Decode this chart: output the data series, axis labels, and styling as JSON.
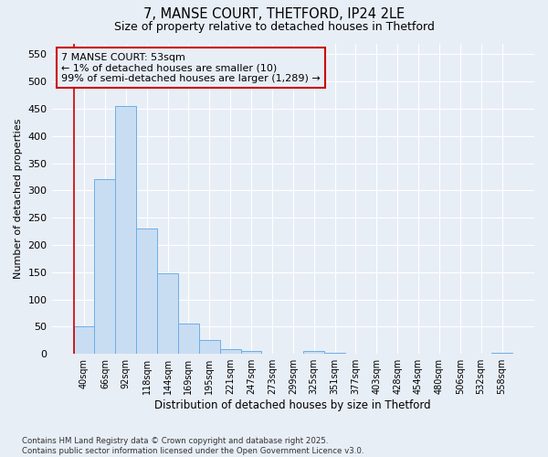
{
  "title_line1": "7, MANSE COURT, THETFORD, IP24 2LE",
  "title_line2": "Size of property relative to detached houses in Thetford",
  "xlabel": "Distribution of detached houses by size in Thetford",
  "ylabel": "Number of detached properties",
  "categories": [
    "40sqm",
    "66sqm",
    "92sqm",
    "118sqm",
    "144sqm",
    "169sqm",
    "195sqm",
    "221sqm",
    "247sqm",
    "273sqm",
    "299sqm",
    "325sqm",
    "351sqm",
    "377sqm",
    "403sqm",
    "428sqm",
    "454sqm",
    "480sqm",
    "506sqm",
    "532sqm",
    "558sqm"
  ],
  "values": [
    50,
    320,
    455,
    230,
    148,
    55,
    25,
    9,
    5,
    0,
    0,
    5,
    2,
    0,
    0,
    0,
    0,
    0,
    0,
    0,
    2
  ],
  "bar_color": "#c9ddf2",
  "bar_edge_color": "#6aaee8",
  "annotation_box_color": "#cc0000",
  "annotation_text": "7 MANSE COURT: 53sqm\n← 1% of detached houses are smaller (10)\n99% of semi-detached houses are larger (1,289) →",
  "highlight_bar_color": "#cc0000",
  "ylim": [
    0,
    570
  ],
  "yticks": [
    0,
    50,
    100,
    150,
    200,
    250,
    300,
    350,
    400,
    450,
    500,
    550
  ],
  "footnote": "Contains HM Land Registry data © Crown copyright and database right 2025.\nContains public sector information licensed under the Open Government Licence v3.0.",
  "bg_color": "#e8eef6",
  "grid_color": "#ffffff",
  "figsize": [
    6.0,
    5.0
  ],
  "dpi": 100
}
